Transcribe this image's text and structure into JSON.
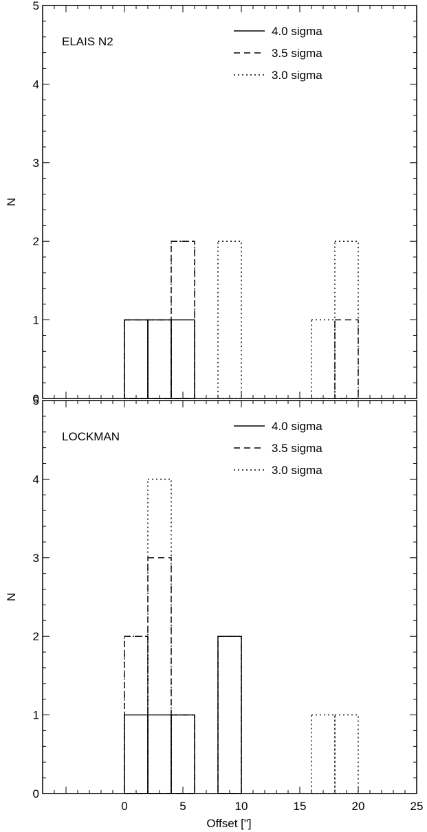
{
  "chart_data": [
    {
      "type": "bar",
      "subtype": "step-histogram",
      "panel_label": "ELAIS N2",
      "xlabel": "",
      "ylabel": "N",
      "xlim": [
        -7,
        25
      ],
      "ylim": [
        0,
        5
      ],
      "x_ticks": [
        0,
        5,
        10,
        15,
        20,
        25
      ],
      "x_tick_labels_shown": false,
      "y_ticks": [
        0,
        1,
        2,
        3,
        4,
        5
      ],
      "bin_width": 2,
      "legend_position": "top-right",
      "series": [
        {
          "name": "4.0 sigma",
          "style": "solid",
          "bins": [
            [
              0,
              1
            ],
            [
              2,
              1
            ],
            [
              4,
              1
            ]
          ]
        },
        {
          "name": "3.5 sigma",
          "style": "dashed",
          "bins": [
            [
              0,
              1
            ],
            [
              2,
              1
            ],
            [
              4,
              2
            ],
            [
              18,
              1
            ]
          ]
        },
        {
          "name": "3.0 sigma",
          "style": "dotted",
          "bins": [
            [
              0,
              1
            ],
            [
              2,
              1
            ],
            [
              4,
              2
            ],
            [
              8,
              2
            ],
            [
              16,
              1
            ],
            [
              18,
              2
            ]
          ]
        }
      ]
    },
    {
      "type": "bar",
      "subtype": "step-histogram",
      "panel_label": "LOCKMAN",
      "xlabel": "Offset [\"]",
      "ylabel": "N",
      "xlim": [
        -7,
        25
      ],
      "ylim": [
        0,
        5
      ],
      "x_ticks": [
        0,
        5,
        10,
        15,
        20,
        25
      ],
      "x_tick_labels_shown": true,
      "y_ticks": [
        0,
        1,
        2,
        3,
        4,
        5
      ],
      "bin_width": 2,
      "legend_position": "top-right",
      "series": [
        {
          "name": "4.0 sigma",
          "style": "solid",
          "bins": [
            [
              0,
              1
            ],
            [
              2,
              1
            ],
            [
              4,
              1
            ],
            [
              8,
              2
            ]
          ]
        },
        {
          "name": "3.5 sigma",
          "style": "dashed",
          "bins": [
            [
              0,
              2
            ],
            [
              2,
              3
            ],
            [
              4,
              1
            ],
            [
              8,
              2
            ]
          ]
        },
        {
          "name": "3.0 sigma",
          "style": "dotted",
          "bins": [
            [
              0,
              2
            ],
            [
              2,
              4
            ],
            [
              4,
              1
            ],
            [
              8,
              2
            ],
            [
              16,
              1
            ],
            [
              18,
              1
            ]
          ]
        }
      ]
    }
  ]
}
